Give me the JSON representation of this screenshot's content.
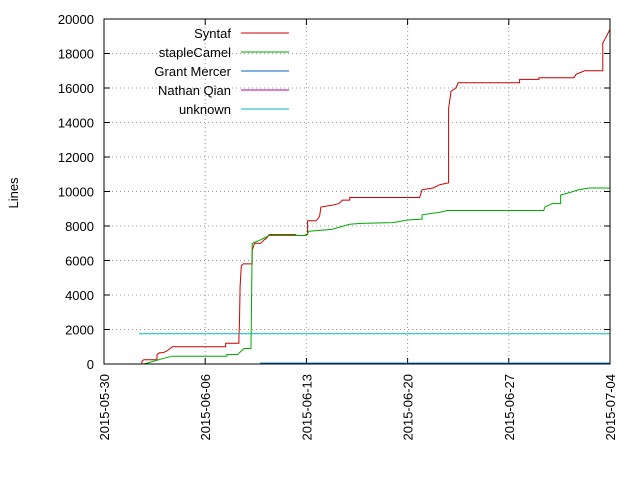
{
  "chart_data": {
    "type": "line",
    "ylabel": "Lines",
    "xlabel": "",
    "title": "",
    "ylim": [
      0,
      20000
    ],
    "xlim": [
      "2015-05-30",
      "2015-07-04"
    ],
    "y_ticks": [
      0,
      2000,
      4000,
      6000,
      8000,
      10000,
      12000,
      14000,
      16000,
      18000,
      20000
    ],
    "x_ticks": [
      "2015-05-30",
      "2015-06-06",
      "2015-06-13",
      "2015-06-20",
      "2015-06-27",
      "2015-07-04"
    ],
    "grid": true,
    "legend_position": "top-left",
    "series": [
      {
        "name": "Syntaf",
        "color": "#cc0000",
        "points": [
          [
            "2015-06-01T15:00",
            0
          ],
          [
            "2015-06-01T15:00",
            150
          ],
          [
            "2015-06-01T18:00",
            250
          ],
          [
            "2015-06-02T16:00",
            250
          ],
          [
            "2015-06-02T16:00",
            550
          ],
          [
            "2015-06-02T20:00",
            650
          ],
          [
            "2015-06-03T02:00",
            650
          ],
          [
            "2015-06-03T08:00",
            750
          ],
          [
            "2015-06-03T14:00",
            900
          ],
          [
            "2015-06-03T17:00",
            1000
          ],
          [
            "2015-06-07T10:00",
            1000
          ],
          [
            "2015-06-07T10:00",
            1200
          ],
          [
            "2015-06-08T08:00",
            1200
          ],
          [
            "2015-06-08T08:00",
            1500
          ],
          [
            "2015-06-08T09:00",
            2500
          ],
          [
            "2015-06-08T10:00",
            4500
          ],
          [
            "2015-06-08T12:00",
            5700
          ],
          [
            "2015-06-08T15:00",
            5800
          ],
          [
            "2015-06-09T06:00",
            5800
          ],
          [
            "2015-06-09T06:00",
            6600
          ],
          [
            "2015-06-09T10:00",
            7000
          ],
          [
            "2015-06-09T20:00",
            7000
          ],
          [
            "2015-06-10T02:00",
            7200
          ],
          [
            "2015-06-10T06:00",
            7300
          ],
          [
            "2015-06-10T10:00",
            7500
          ],
          [
            "2015-06-12T06:00",
            7500
          ],
          [
            "2015-06-12T08:00",
            7450
          ],
          [
            "2015-06-12T20:00",
            7450
          ],
          [
            "2015-06-13T00:00",
            7500
          ],
          [
            "2015-06-13T02:00",
            7500
          ],
          [
            "2015-06-13T02:00",
            8300
          ],
          [
            "2015-06-13T16:00",
            8300
          ],
          [
            "2015-06-13T20:00",
            8450
          ],
          [
            "2015-06-13T22:00",
            8600
          ],
          [
            "2015-06-14T00:00",
            9100
          ],
          [
            "2015-06-14T18:00",
            9200
          ],
          [
            "2015-06-15T06:00",
            9300
          ],
          [
            "2015-06-15T12:00",
            9500
          ],
          [
            "2015-06-16T00:00",
            9500
          ],
          [
            "2015-06-16T00:00",
            9650
          ],
          [
            "2015-06-20T20:00",
            9650
          ],
          [
            "2015-06-21T00:00",
            10100
          ],
          [
            "2015-06-21T18:00",
            10200
          ],
          [
            "2015-06-22T06:00",
            10400
          ],
          [
            "2015-06-22T20:00",
            10500
          ],
          [
            "2015-06-22T20:00",
            14800
          ],
          [
            "2015-06-23T00:00",
            15800
          ],
          [
            "2015-06-23T08:00",
            16000
          ],
          [
            "2015-06-23T12:00",
            16300
          ],
          [
            "2015-06-27T18:00",
            16300
          ],
          [
            "2015-06-27T18:00",
            16500
          ],
          [
            "2015-06-29T02:00",
            16500
          ],
          [
            "2015-06-29T02:00",
            16600
          ],
          [
            "2015-07-01T12:00",
            16600
          ],
          [
            "2015-07-01T16:00",
            16800
          ],
          [
            "2015-07-02T06:00",
            17000
          ],
          [
            "2015-07-03T12:00",
            17000
          ],
          [
            "2015-07-03T12:00",
            18600
          ],
          [
            "2015-07-03T18:00",
            19000
          ],
          [
            "2015-07-04T00:00",
            19400
          ]
        ]
      },
      {
        "name": "stapleCamel",
        "color": "#00aa00",
        "points": [
          [
            "2015-06-01T18:00",
            0
          ],
          [
            "2015-06-02T10:00",
            150
          ],
          [
            "2015-06-03T00:00",
            300
          ],
          [
            "2015-06-03T17:00",
            450
          ],
          [
            "2015-06-07T12:00",
            450
          ],
          [
            "2015-06-07T12:00",
            550
          ],
          [
            "2015-06-08T06:00",
            550
          ],
          [
            "2015-06-08T16:00",
            900
          ],
          [
            "2015-06-09T04:00",
            900
          ],
          [
            "2015-06-09T06:00",
            7000
          ],
          [
            "2015-06-09T20:00",
            7200
          ],
          [
            "2015-06-10T10:00",
            7450
          ],
          [
            "2015-06-13T00:00",
            7450
          ],
          [
            "2015-06-13T04:00",
            7700
          ],
          [
            "2015-06-14T18:00",
            7800
          ],
          [
            "2015-06-16T00:00",
            8100
          ],
          [
            "2015-06-16T18:00",
            8150
          ],
          [
            "2015-06-19T00:00",
            8200
          ],
          [
            "2015-06-20T00:00",
            8350
          ],
          [
            "2015-06-21T00:00",
            8400
          ],
          [
            "2015-06-21T00:00",
            8650
          ],
          [
            "2015-06-22T06:00",
            8800
          ],
          [
            "2015-06-22T18:00",
            8900
          ],
          [
            "2015-06-29T10:00",
            8900
          ],
          [
            "2015-06-29T12:00",
            9100
          ],
          [
            "2015-06-30T00:00",
            9300
          ],
          [
            "2015-06-30T14:00",
            9300
          ],
          [
            "2015-06-30T14:00",
            9800
          ],
          [
            "2015-07-01T06:00",
            9950
          ],
          [
            "2015-07-01T20:00",
            10100
          ],
          [
            "2015-07-02T14:00",
            10200
          ],
          [
            "2015-07-04T00:00",
            10200
          ]
        ]
      },
      {
        "name": "Grant Mercer",
        "color": "#0066bb",
        "points": [
          [
            "2015-06-09T20:00",
            0
          ],
          [
            "2015-06-09T20:00",
            50
          ],
          [
            "2015-07-04T00:00",
            50
          ]
        ]
      },
      {
        "name": "Nathan Qian",
        "color": "#aa00aa",
        "points": [
          [
            "2015-06-09T20:00",
            0
          ],
          [
            "2015-07-04T00:00",
            0
          ]
        ]
      },
      {
        "name": "unknown",
        "color": "#00bbbb",
        "points": [
          [
            "2015-06-01T10:00",
            1750
          ],
          [
            "2015-07-04T00:00",
            1750
          ]
        ]
      }
    ]
  }
}
